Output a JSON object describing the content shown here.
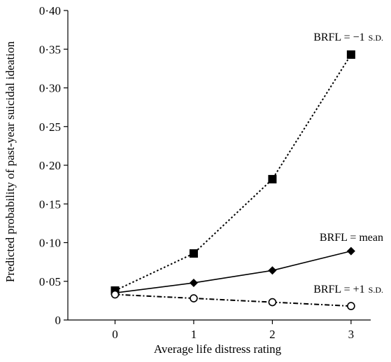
{
  "chart_data": {
    "type": "line",
    "xlabel": "Average life distress rating",
    "ylabel": "Predicted probability of past-year suicidal ideation",
    "x": [
      0,
      1,
      2,
      3
    ],
    "x_tick_labels": [
      "0",
      "1",
      "2",
      "3"
    ],
    "xlim": [
      -0.6,
      3.25
    ],
    "ylim": [
      0,
      0.4
    ],
    "y_ticks": [
      0,
      0.05,
      0.1,
      0.15,
      0.2,
      0.25,
      0.3,
      0.35,
      0.4
    ],
    "y_tick_labels": [
      "0",
      "0·05",
      "0·10",
      "0·15",
      "0·20",
      "0·25",
      "0·30",
      "0·35",
      "0·40"
    ],
    "grid": false,
    "legend": "none",
    "series": [
      {
        "name": "BRFL = −1 S.D.",
        "name_main": "BRFL = −1",
        "name_sc": "S.D.",
        "values": [
          0.038,
          0.086,
          0.182,
          0.343
        ],
        "marker": "square",
        "line_style": "dotted"
      },
      {
        "name": "BRFL = mean",
        "name_main": "BRFL = mean",
        "name_sc": "",
        "values": [
          0.035,
          0.048,
          0.064,
          0.089
        ],
        "marker": "diamond",
        "line_style": "solid"
      },
      {
        "name": "BRFL = +1 S.D.",
        "name_main": "BRFL = +1",
        "name_sc": "S.D.",
        "values": [
          0.033,
          0.028,
          0.023,
          0.018
        ],
        "marker": "open-circle",
        "line_style": "dash-dot"
      }
    ]
  }
}
